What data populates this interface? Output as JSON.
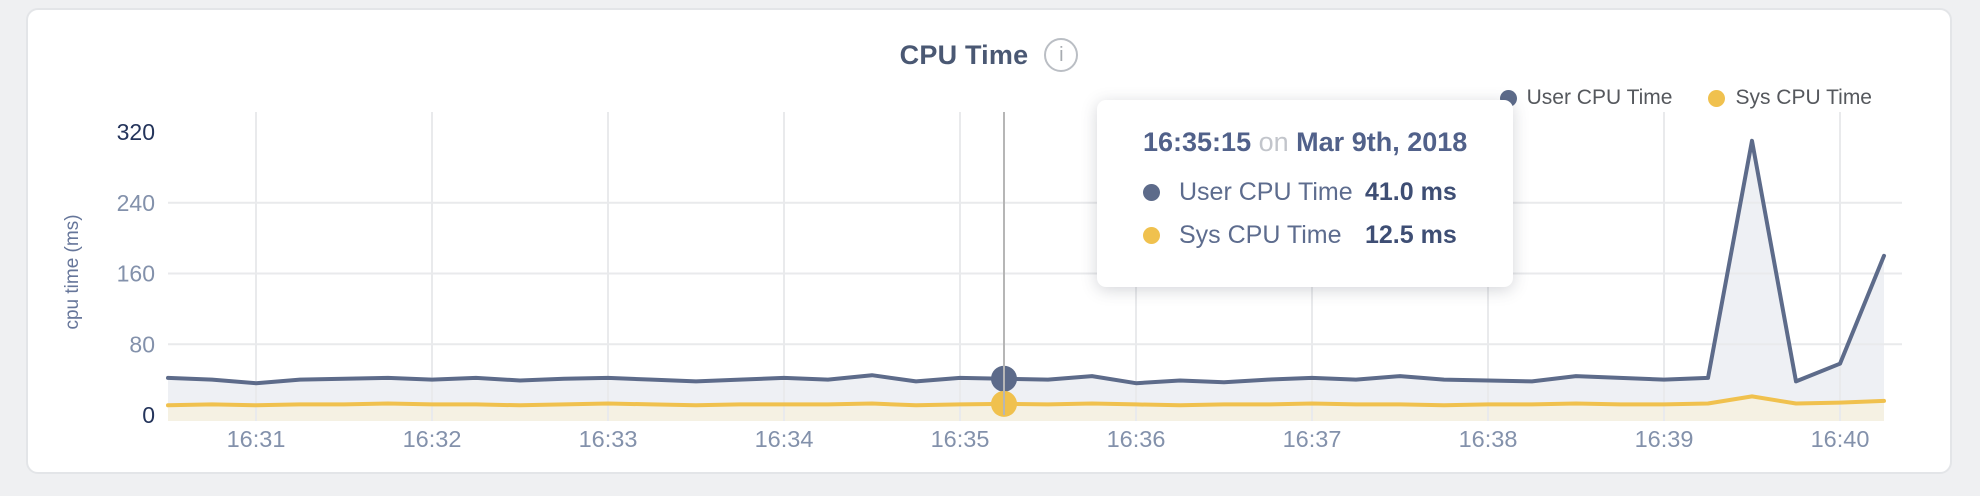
{
  "header": {
    "title": "CPU Time",
    "info_icon": "i"
  },
  "legend": {
    "items": [
      {
        "label": "User CPU Time",
        "color": "#5d6b8a"
      },
      {
        "label": "Sys CPU Time",
        "color": "#f0c14e"
      }
    ]
  },
  "tooltip": {
    "time": "16:35:15",
    "conjunction": "on",
    "date": "Mar 9th, 2018",
    "rows": [
      {
        "label": "User CPU Time",
        "value": "41.0 ms"
      },
      {
        "label": "Sys CPU Time",
        "value": "12.5 ms"
      }
    ]
  },
  "chart_data": {
    "type": "line",
    "title": "CPU Time",
    "xlabel": "",
    "ylabel": "cpu time (ms)",
    "unit": "ms",
    "ylim": [
      0,
      320
    ],
    "y_ticks": [
      0,
      80,
      160,
      240,
      320
    ],
    "y_ticks_emphasized": [
      0,
      320
    ],
    "x_ticks": [
      "16:31",
      "16:32",
      "16:33",
      "16:34",
      "16:35",
      "16:36",
      "16:37",
      "16:38",
      "16:39",
      "16:40"
    ],
    "x_start_time": "16:30:30",
    "x_interval_seconds": 15,
    "grid": true,
    "legend_position": "top-right",
    "hover": {
      "index": 19,
      "time": "16:35:15",
      "date": "Mar 9th, 2018",
      "values": {
        "User CPU Time": 41.0,
        "Sys CPU Time": 12.5
      }
    },
    "series": [
      {
        "name": "User CPU Time",
        "color": "#5d6b8a",
        "fill": "#eef0f4",
        "values": [
          42,
          40,
          36,
          40,
          41,
          42,
          40,
          42,
          39,
          41,
          42,
          40,
          38,
          40,
          42,
          40,
          45,
          38,
          42,
          41,
          40,
          44,
          36,
          39,
          37,
          40,
          42,
          40,
          44,
          40,
          39,
          38,
          44,
          42,
          40,
          42,
          310,
          38,
          58,
          180
        ]
      },
      {
        "name": "Sys CPU Time",
        "color": "#f0c14e",
        "fill": "#f5f1e3",
        "values": [
          11,
          12,
          11,
          12,
          12,
          13,
          12,
          12,
          11,
          12,
          13,
          12,
          11,
          12,
          12,
          12,
          13,
          11,
          12,
          12.5,
          12,
          13,
          12,
          11,
          12,
          12,
          13,
          12,
          12,
          11,
          12,
          12,
          13,
          12,
          12,
          13,
          21,
          13,
          14,
          16
        ]
      }
    ],
    "colors": {
      "gridline": "#e9eaec",
      "crosshair": "#b6b6b6",
      "tick_label": "#8391ab",
      "tick_label_emphasized": "#24345b"
    }
  }
}
